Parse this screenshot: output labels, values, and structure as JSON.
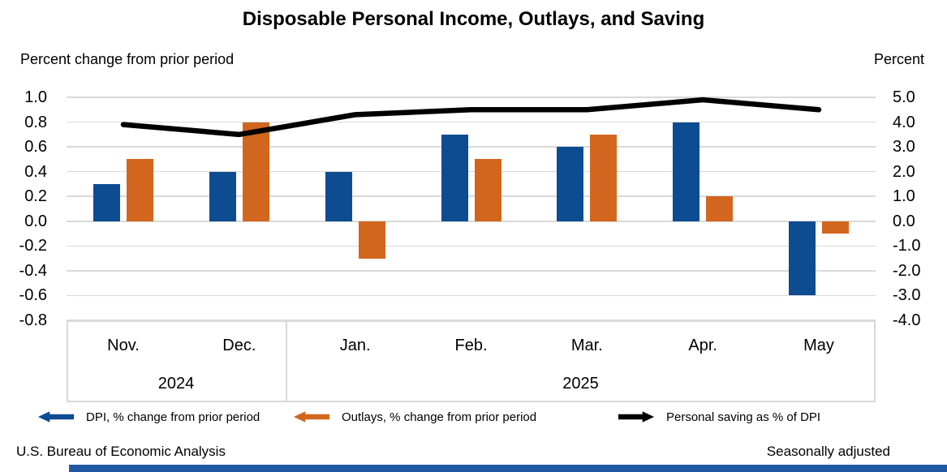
{
  "title": "Disposable Personal Income, Outlays, and Saving",
  "axis_labels": {
    "left": "Percent change from prior period",
    "right": "Percent"
  },
  "footer": {
    "left": "U.S. Bureau of Economic Analysis",
    "right": "Seasonally adjusted"
  },
  "colors": {
    "dpi_blue": "#0e4c92",
    "outlays_orange": "#d2661e",
    "saving_line": "#000000",
    "gridline": "#d9d9d9",
    "accent_bar": "#2058a4"
  },
  "legend": [
    {
      "label": "DPI, % change from prior period",
      "color": "#0e4c92",
      "arrow": "left",
      "icon": "blue-left-arrow-icon"
    },
    {
      "label": "Outlays, % change from prior period",
      "color": "#d2661e",
      "arrow": "left",
      "icon": "orange-left-arrow-icon"
    },
    {
      "label": "Personal saving as % of DPI",
      "color": "#000000",
      "arrow": "right",
      "icon": "black-right-arrow-icon"
    }
  ],
  "chart_data": {
    "type": "bar",
    "subtype": "grouped bars with overlay line on secondary axis",
    "categories": [
      "Nov.",
      "Dec.",
      "Jan.",
      "Feb.",
      "Mar.",
      "Apr.",
      "May"
    ],
    "year_groups": [
      {
        "label": "2024",
        "category_count": 2
      },
      {
        "label": "2025",
        "category_count": 5
      }
    ],
    "series": [
      {
        "name": "DPI, % change from prior period",
        "type": "bar",
        "axis": "left",
        "color": "#0e4c92",
        "values": [
          0.3,
          0.4,
          0.4,
          0.7,
          0.6,
          0.8,
          -0.6
        ]
      },
      {
        "name": "Outlays, % change from prior period",
        "type": "bar",
        "axis": "left",
        "color": "#d2661e",
        "values": [
          0.5,
          0.8,
          -0.3,
          0.5,
          0.7,
          0.2,
          -0.1
        ]
      },
      {
        "name": "Personal saving as % of DPI",
        "type": "line",
        "axis": "right",
        "color": "#000000",
        "values": [
          3.9,
          3.5,
          4.3,
          4.5,
          4.5,
          4.9,
          4.5
        ]
      }
    ],
    "left_axis": {
      "title": "Percent change from prior period",
      "range": [
        -0.8,
        1.0
      ],
      "ticks": [
        "1.0",
        "0.8",
        "0.6",
        "0.4",
        "0.2",
        "0.0",
        "-0.2",
        "-0.4",
        "-0.6",
        "-0.8"
      ]
    },
    "right_axis": {
      "title": "Percent",
      "range": [
        -4.0,
        5.0
      ],
      "ticks": [
        "5.0",
        "4.0",
        "3.0",
        "2.0",
        "1.0",
        "0.0",
        "-1.0",
        "-2.0",
        "-3.0",
        "-4.0"
      ]
    },
    "grid": true,
    "legend_position": "bottom"
  }
}
